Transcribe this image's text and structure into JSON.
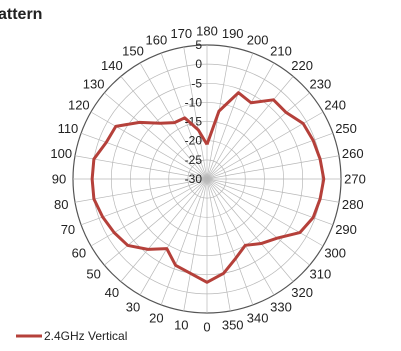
{
  "chart_data": {
    "type": "line",
    "subtype": "polar",
    "title": "attern",
    "angle_tick_labels": [
      "180",
      "190",
      "200",
      "210",
      "220",
      "230",
      "240",
      "250",
      "260",
      "270",
      "280",
      "290",
      "300",
      "310",
      "320",
      "330",
      "340",
      "350",
      "0",
      "10",
      "20",
      "30",
      "40",
      "50",
      "60",
      "70",
      "80",
      "90",
      "100",
      "110",
      "120",
      "130",
      "140",
      "150",
      "160",
      "170"
    ],
    "radial_tick_labels": [
      "5",
      "0",
      "-5",
      "-10",
      "-15",
      "-20",
      "-25",
      "-30"
    ],
    "radial_range": [
      -30,
      5
    ],
    "angular_step_deg": 10,
    "grid": true,
    "legend_position": "bottom-left",
    "series": [
      {
        "name": "2.4GHz Vertical",
        "color": "#b5403a",
        "x": [
          180,
          190,
          200,
          210,
          220,
          230,
          240,
          250,
          260,
          270,
          280,
          290,
          300,
          310,
          320,
          330,
          340,
          350,
          0,
          10,
          20,
          30,
          40,
          50,
          60,
          70,
          80,
          90,
          100,
          110,
          120,
          130,
          140,
          150,
          160,
          170,
          180
        ],
        "y": [
          -21,
          -12,
          -6,
          -7,
          -3,
          -3,
          -1,
          -0.5,
          0,
          0.5,
          0,
          -0.5,
          -2,
          -6,
          -8,
          -10,
          -8,
          -5,
          -3,
          -5,
          -6,
          -9,
          -6,
          -3,
          -2,
          -1,
          0,
          0,
          0,
          -2,
          -2.5,
          -7,
          -11,
          -13,
          -13,
          -17,
          -21
        ]
      }
    ]
  }
}
